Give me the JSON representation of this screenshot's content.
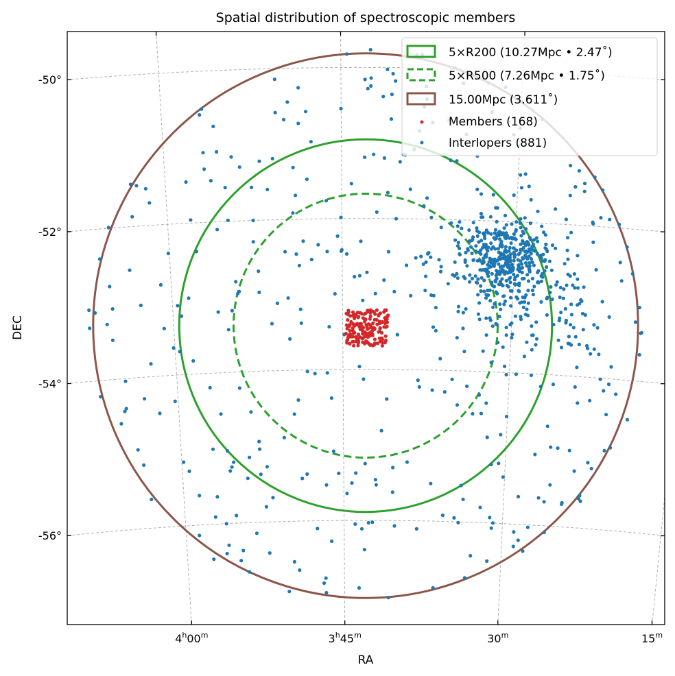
{
  "chart_data": {
    "type": "scatter",
    "title": "Spatial distribution of spectroscopic members",
    "xlabel": "RA",
    "ylabel": "DEC",
    "projection_center": {
      "ra_deg": 55.74,
      "dec_deg": -53.42
    },
    "dec_ticks": [
      {
        "value": -50,
        "label": "-50°"
      },
      {
        "value": -52,
        "label": "-52°"
      },
      {
        "value": -54,
        "label": "-54°"
      },
      {
        "value": -56,
        "label": "-56°"
      }
    ],
    "ra_ticks": [
      {
        "value": 60.0,
        "label_main": "4",
        "sup1": "h",
        "label_mid": "00",
        "sup2": "m"
      },
      {
        "value": 56.25,
        "label_main": "3",
        "sup1": "h",
        "label_mid": "45",
        "sup2": "m"
      },
      {
        "value": 52.5,
        "label_main": "",
        "sup1": "",
        "label_mid": "30",
        "sup2": "m"
      },
      {
        "value": 48.75,
        "label_main": "",
        "sup1": "",
        "label_mid": "15",
        "sup2": "m"
      }
    ],
    "grid": true,
    "circles": [
      {
        "label": "5×R200 (10.27Mpc • 2.47$^\\circ$)",
        "text": "5×R200 (10.27Mpc • 2.47˚)",
        "radius_deg": 2.47,
        "color": "#2ca02c",
        "style": "solid"
      },
      {
        "label": "5×R500",
        "text": "5×R500 (7.26Mpc • 1.75˚)",
        "radius_deg": 1.75,
        "color": "#2ca02c",
        "style": "dashed"
      },
      {
        "label": "15.00Mpc",
        "text": "15.00Mpc (3.611˚)",
        "radius_deg": 3.611,
        "color": "#8c564b",
        "style": "solid"
      }
    ],
    "series": [
      {
        "name": "Members",
        "text": "Members (168)",
        "count": 168,
        "color": "#d62728",
        "groups": [
          {
            "ra_deg": 55.71,
            "dec_deg": -53.45,
            "count": 168,
            "spread_deg": 0.28,
            "shape": "box"
          }
        ]
      },
      {
        "name": "Interlopers",
        "text": "Interlopers (881)",
        "count": 881,
        "color": "#1f77b4",
        "groups": [
          {
            "ra_deg": 52.72,
            "dec_deg": -52.45,
            "count": 330,
            "spread_deg": 0.3,
            "shape": "gauss"
          },
          {
            "ra_deg": 52.2,
            "dec_deg": -53.0,
            "count": 170,
            "spread_deg": 0.6,
            "shape": "gauss"
          },
          {
            "ra_deg": 55.74,
            "dec_deg": -53.42,
            "count": 381,
            "spread_deg": 3.7,
            "shape": "disk"
          }
        ]
      }
    ],
    "legend_position": "top-right"
  }
}
